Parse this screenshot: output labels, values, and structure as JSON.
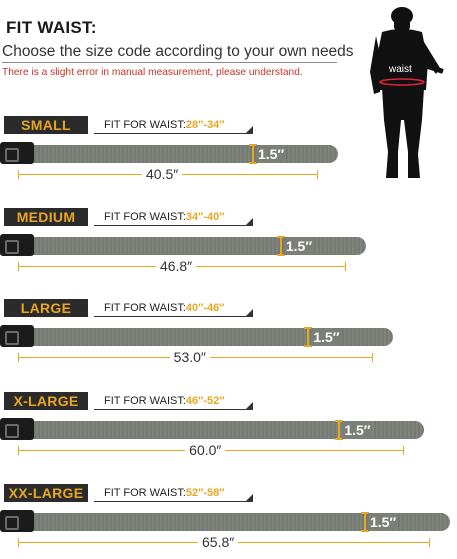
{
  "header": {
    "title": "FIT WAIST:",
    "subtitle": "Choose the size code according to your own needs",
    "note": "There is a slight error in manual measurement, please understand."
  },
  "figure": {
    "waist_label": "waist"
  },
  "sizes": [
    {
      "code": "SMALL",
      "fit_label": "FIT FOR WAIST:",
      "fit_range": "28″-34″",
      "width": "1.5″",
      "length": "40.5″",
      "length_in": 40.5
    },
    {
      "code": "MEDIUM",
      "fit_label": "FIT FOR WAIST:",
      "fit_range": "34″-40″",
      "width": "1.5″",
      "length": "46.8″",
      "length_in": 46.8
    },
    {
      "code": "LARGE",
      "fit_label": "FIT FOR WAIST:",
      "fit_range": "40″-46″",
      "width": "1.5″",
      "length": "53.0″",
      "length_in": 53.0
    },
    {
      "code": "X-LARGE",
      "fit_label": "FIT FOR WAIST:",
      "fit_range": "46″-52″",
      "width": "1.5″",
      "length": "60.0″",
      "length_in": 60.0
    },
    {
      "code": "XX-LARGE",
      "fit_label": "FIT FOR WAIST:",
      "fit_range": "52″-58″",
      "width": "1.5″",
      "length": "65.8″",
      "length_in": 65.8
    }
  ],
  "colors": {
    "accent": "#e8a722",
    "tag_bg": "#2b2b2b",
    "strap": "#7a7f78",
    "note": "#c8342b",
    "waist_ring": "#e0243a"
  }
}
